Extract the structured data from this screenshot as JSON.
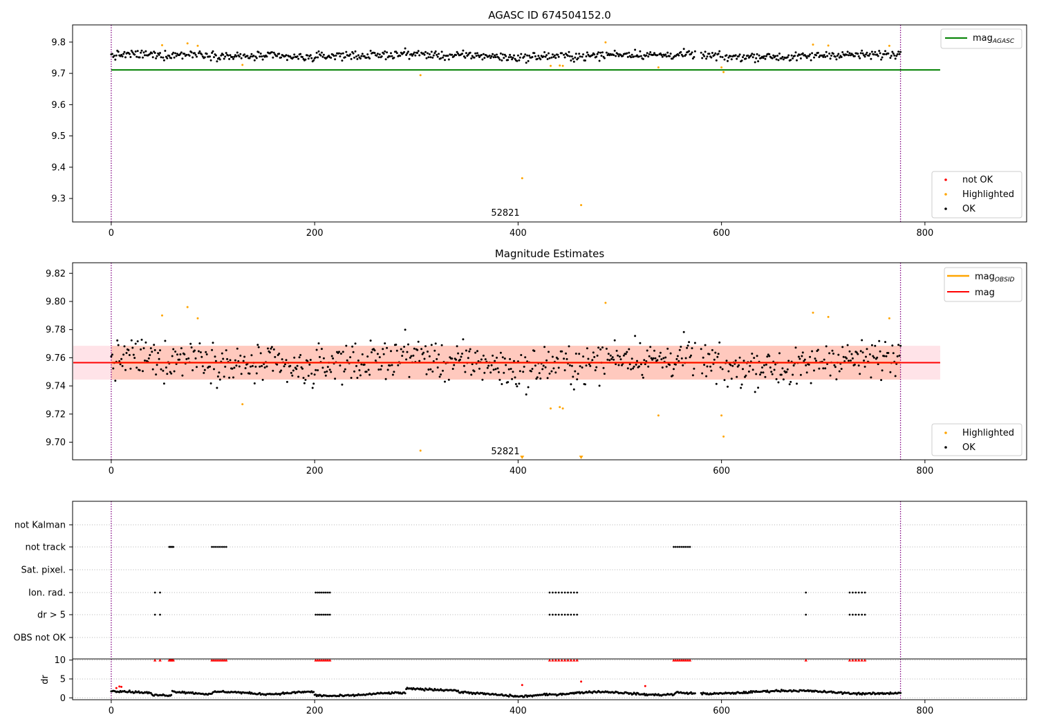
{
  "chart_data": [
    {
      "type": "scatter",
      "title": "AGASC ID 674504152.0",
      "xlabel": "",
      "ylabel": "",
      "xlim": [
        -38,
        900
      ],
      "ylim": [
        9.225,
        9.855
      ],
      "xticks": [
        0,
        200,
        400,
        600,
        800
      ],
      "yticks": [
        9.3,
        9.4,
        9.5,
        9.6,
        9.7,
        9.8
      ],
      "ytick_labels": [
        "9.3",
        "9.4",
        "9.5",
        "9.6",
        "9.7",
        "9.8"
      ],
      "vlines": [
        0,
        776
      ],
      "annotations": [
        {
          "text": "52821",
          "x": 386,
          "y": 9.25
        }
      ],
      "lines": [
        {
          "name": "mag_AGASC",
          "label": "mag",
          "sub": "AGASC",
          "x": [
            0,
            815
          ],
          "y": [
            9.711,
            9.711
          ],
          "color": "#008000"
        }
      ],
      "series": [
        {
          "name": "not OK",
          "color": "#ff0000",
          "points": []
        },
        {
          "name": "Highlighted",
          "color": "#ffa500",
          "points": [
            [
              50,
              9.79
            ],
            [
              75,
              9.796
            ],
            [
              85,
              9.788
            ],
            [
              129,
              9.727
            ],
            [
              304,
              9.694
            ],
            [
              404,
              9.365
            ],
            [
              432,
              9.724
            ],
            [
              441,
              9.725
            ],
            [
              444,
              9.724
            ],
            [
              462,
              9.279
            ],
            [
              486,
              9.799
            ],
            [
              538,
              9.719
            ],
            [
              600,
              9.719
            ],
            [
              602,
              9.704
            ],
            [
              690,
              9.792
            ],
            [
              705,
              9.789
            ],
            [
              765,
              9.788
            ]
          ]
        },
        {
          "name": "OK",
          "color": "#000000",
          "points": "ok_series"
        }
      ],
      "legend": [
        "mag_AGASC",
        "not OK",
        "Highlighted",
        "OK"
      ],
      "legend_placement": [
        "upper right",
        "lower right"
      ]
    },
    {
      "type": "scatter",
      "title": "Magnitude Estimates",
      "xlabel": "",
      "ylabel": "",
      "xlim": [
        -38,
        900
      ],
      "ylim": [
        9.6875,
        9.8275
      ],
      "xticks": [
        0,
        200,
        400,
        600,
        800
      ],
      "yticks": [
        9.7,
        9.72,
        9.74,
        9.76,
        9.78,
        9.8,
        9.82
      ],
      "ytick_labels": [
        "9.70",
        "9.72",
        "9.74",
        "9.76",
        "9.78",
        "9.80",
        "9.82"
      ],
      "vlines": [
        0,
        776
      ],
      "annotations": [
        {
          "text": "52821",
          "x": 386,
          "y": 9.6895
        }
      ],
      "bands": [
        {
          "x": [
            -38,
            815
          ],
          "y": [
            9.7445,
            9.7685
          ],
          "color": "#ffc0cb",
          "opacity": 0.45
        },
        {
          "x": [
            0,
            776
          ],
          "y": [
            9.7445,
            9.7685
          ],
          "color": "#ffa07a",
          "opacity": 0.38
        }
      ],
      "lines": [
        {
          "name": "mag_OBSID",
          "label": "mag",
          "sub": "OBSID",
          "x": [
            0,
            776
          ],
          "y": [
            9.7565,
            9.7565
          ],
          "color": "#ffa500"
        },
        {
          "name": "mag",
          "label": "mag",
          "x": [
            -38,
            815
          ],
          "y": [
            9.7565,
            9.7565
          ],
          "color": "#ff0000"
        }
      ],
      "clipped_markers": [
        {
          "x": 404,
          "label": "Highlighted"
        },
        {
          "x": 462,
          "label": "Highlighted"
        }
      ],
      "series": [
        {
          "name": "Highlighted",
          "color": "#ffa500",
          "points": [
            [
              50,
              9.79
            ],
            [
              75,
              9.796
            ],
            [
              85,
              9.788
            ],
            [
              129,
              9.727
            ],
            [
              304,
              9.694
            ],
            [
              432,
              9.724
            ],
            [
              441,
              9.725
            ],
            [
              444,
              9.724
            ],
            [
              486,
              9.799
            ],
            [
              538,
              9.719
            ],
            [
              600,
              9.719
            ],
            [
              602,
              9.704
            ],
            [
              690,
              9.792
            ],
            [
              705,
              9.789
            ],
            [
              765,
              9.788
            ]
          ]
        },
        {
          "name": "OK",
          "color": "#000000",
          "points": "ok_series"
        }
      ],
      "legend": [
        "mag_OBSID",
        "mag",
        "Highlighted",
        "OK"
      ],
      "legend_placement": [
        "upper right",
        "lower right"
      ]
    },
    {
      "type": "scatter",
      "title": "",
      "xlim": [
        -38,
        900
      ],
      "xticks": [
        0,
        200,
        400,
        600,
        800
      ],
      "vlines": [
        0,
        776
      ],
      "categories": [
        "not Kalman",
        "not track",
        "Sat. pixel.",
        "Ion. rad.",
        "dr > 5",
        "OBS not OK"
      ],
      "flag_points": {
        "not Kalman": [],
        "not track": [
          57,
          58,
          59,
          60,
          61,
          99,
          101,
          103,
          105,
          107,
          109,
          111,
          113,
          553,
          555,
          557,
          559,
          561,
          563,
          565,
          567,
          569
        ],
        "Sat. pixel.": [],
        "Ion. rad.": [
          43,
          48,
          201,
          203,
          205,
          207,
          209,
          211,
          213,
          215,
          431,
          434,
          437,
          440,
          443,
          446,
          449,
          452,
          455,
          458,
          683,
          726,
          729,
          732,
          735,
          738,
          741
        ],
        "dr > 5": [
          43,
          48,
          201,
          203,
          205,
          207,
          209,
          211,
          213,
          215,
          431,
          434,
          437,
          440,
          443,
          446,
          449,
          452,
          455,
          458,
          683,
          726,
          729,
          732,
          735,
          738,
          741
        ],
        "OBS not OK": []
      }
    },
    {
      "type": "scatter",
      "title": "",
      "xlabel": "",
      "ylabel": "dr",
      "xlim": [
        -38,
        900
      ],
      "ylim": [
        -0.5,
        10.3
      ],
      "xticks": [
        0,
        200,
        400,
        600,
        800
      ],
      "xtick_labels": [
        "0",
        "200",
        "400",
        "600",
        "800"
      ],
      "yticks": [
        0,
        5,
        10
      ],
      "ytick_labels": [
        "0",
        "5",
        "10"
      ],
      "vlines": [
        0,
        776
      ],
      "series": [
        {
          "name": "dr capped (red)",
          "color": "#ff0000",
          "x": [
            43,
            48,
            57,
            58,
            59,
            60,
            61,
            99,
            101,
            103,
            105,
            107,
            109,
            111,
            113,
            201,
            203,
            205,
            207,
            209,
            211,
            213,
            215,
            431,
            434,
            437,
            440,
            443,
            446,
            449,
            452,
            455,
            458,
            553,
            555,
            557,
            559,
            561,
            563,
            565,
            567,
            569,
            683,
            726,
            729,
            732,
            735,
            738,
            741
          ],
          "y": 10
        },
        {
          "name": "dr extra (red)",
          "color": "#ff0000",
          "points": [
            [
              5,
              2.6
            ],
            [
              8,
              3.0
            ],
            [
              10,
              2.9
            ],
            [
              404,
              3.4
            ],
            [
              462,
              4.3
            ],
            [
              525,
              3.1
            ]
          ]
        },
        {
          "name": "dr",
          "color": "#000000",
          "points": "dr_series"
        }
      ]
    }
  ]
}
